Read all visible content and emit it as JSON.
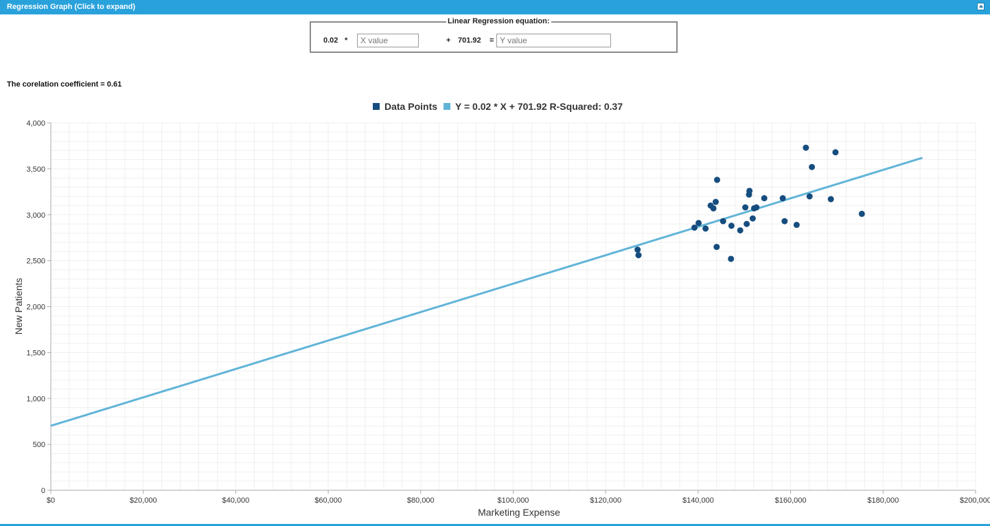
{
  "panel": {
    "title": "Regression Graph (Click to expand)"
  },
  "equation": {
    "legend": "Linear Regression equation:",
    "slope": "0.02",
    "times": "*",
    "x_placeholder": "X value",
    "plus": "+",
    "intercept": "701.92",
    "equals": "=",
    "y_placeholder": "Y value"
  },
  "correlation_text": "The corelation coefficient = 0.61",
  "chart_data": {
    "type": "scatter",
    "title": "",
    "xlabel": "Marketing Expense",
    "ylabel": "New Patients",
    "xlim": [
      0,
      200000
    ],
    "ylim": [
      0,
      4000
    ],
    "x_ticks": [
      0,
      20000,
      40000,
      60000,
      80000,
      100000,
      120000,
      140000,
      160000,
      180000,
      200000
    ],
    "x_tick_labels": [
      "$0",
      "$20,000",
      "$40,000",
      "$60,000",
      "$80,000",
      "$100,000",
      "$120,000",
      "$140,000",
      "$160,000",
      "$180,000",
      "$200,000"
    ],
    "y_ticks": [
      0,
      500,
      1000,
      1500,
      2000,
      2500,
      3000,
      3500,
      4000
    ],
    "y_tick_labels": [
      "0",
      "500",
      "1,000",
      "1,500",
      "2,000",
      "2,500",
      "3,000",
      "3,500",
      "4,000"
    ],
    "grid": true,
    "legend_position": "top-center",
    "series": [
      {
        "name": "Data Points",
        "kind": "scatter",
        "color": "#164d7e",
        "x": [
          126900,
          127100,
          139200,
          140100,
          141600,
          142700,
          143300,
          143800,
          144000,
          144100,
          145400,
          147100,
          147200,
          149100,
          150200,
          150500,
          151000,
          151100,
          151800,
          152100,
          152600,
          154300,
          158300,
          158700,
          161300,
          163300,
          164100,
          164600,
          168700,
          169700,
          175400
        ],
        "y": [
          2620,
          2560,
          2860,
          2910,
          2850,
          3100,
          3070,
          3140,
          2650,
          3380,
          2930,
          2520,
          2880,
          2830,
          3080,
          2900,
          3220,
          3260,
          2960,
          3070,
          3080,
          3180,
          3180,
          2930,
          2890,
          3730,
          3200,
          3520,
          3170,
          3680,
          3010
        ]
      },
      {
        "name": "Y = 0.02 * X + 701.92 R-Squared: 0.37",
        "kind": "line",
        "color": "#61b4d8",
        "x": [
          0,
          188500
        ],
        "y": [
          701.92,
          3620
        ]
      }
    ]
  }
}
